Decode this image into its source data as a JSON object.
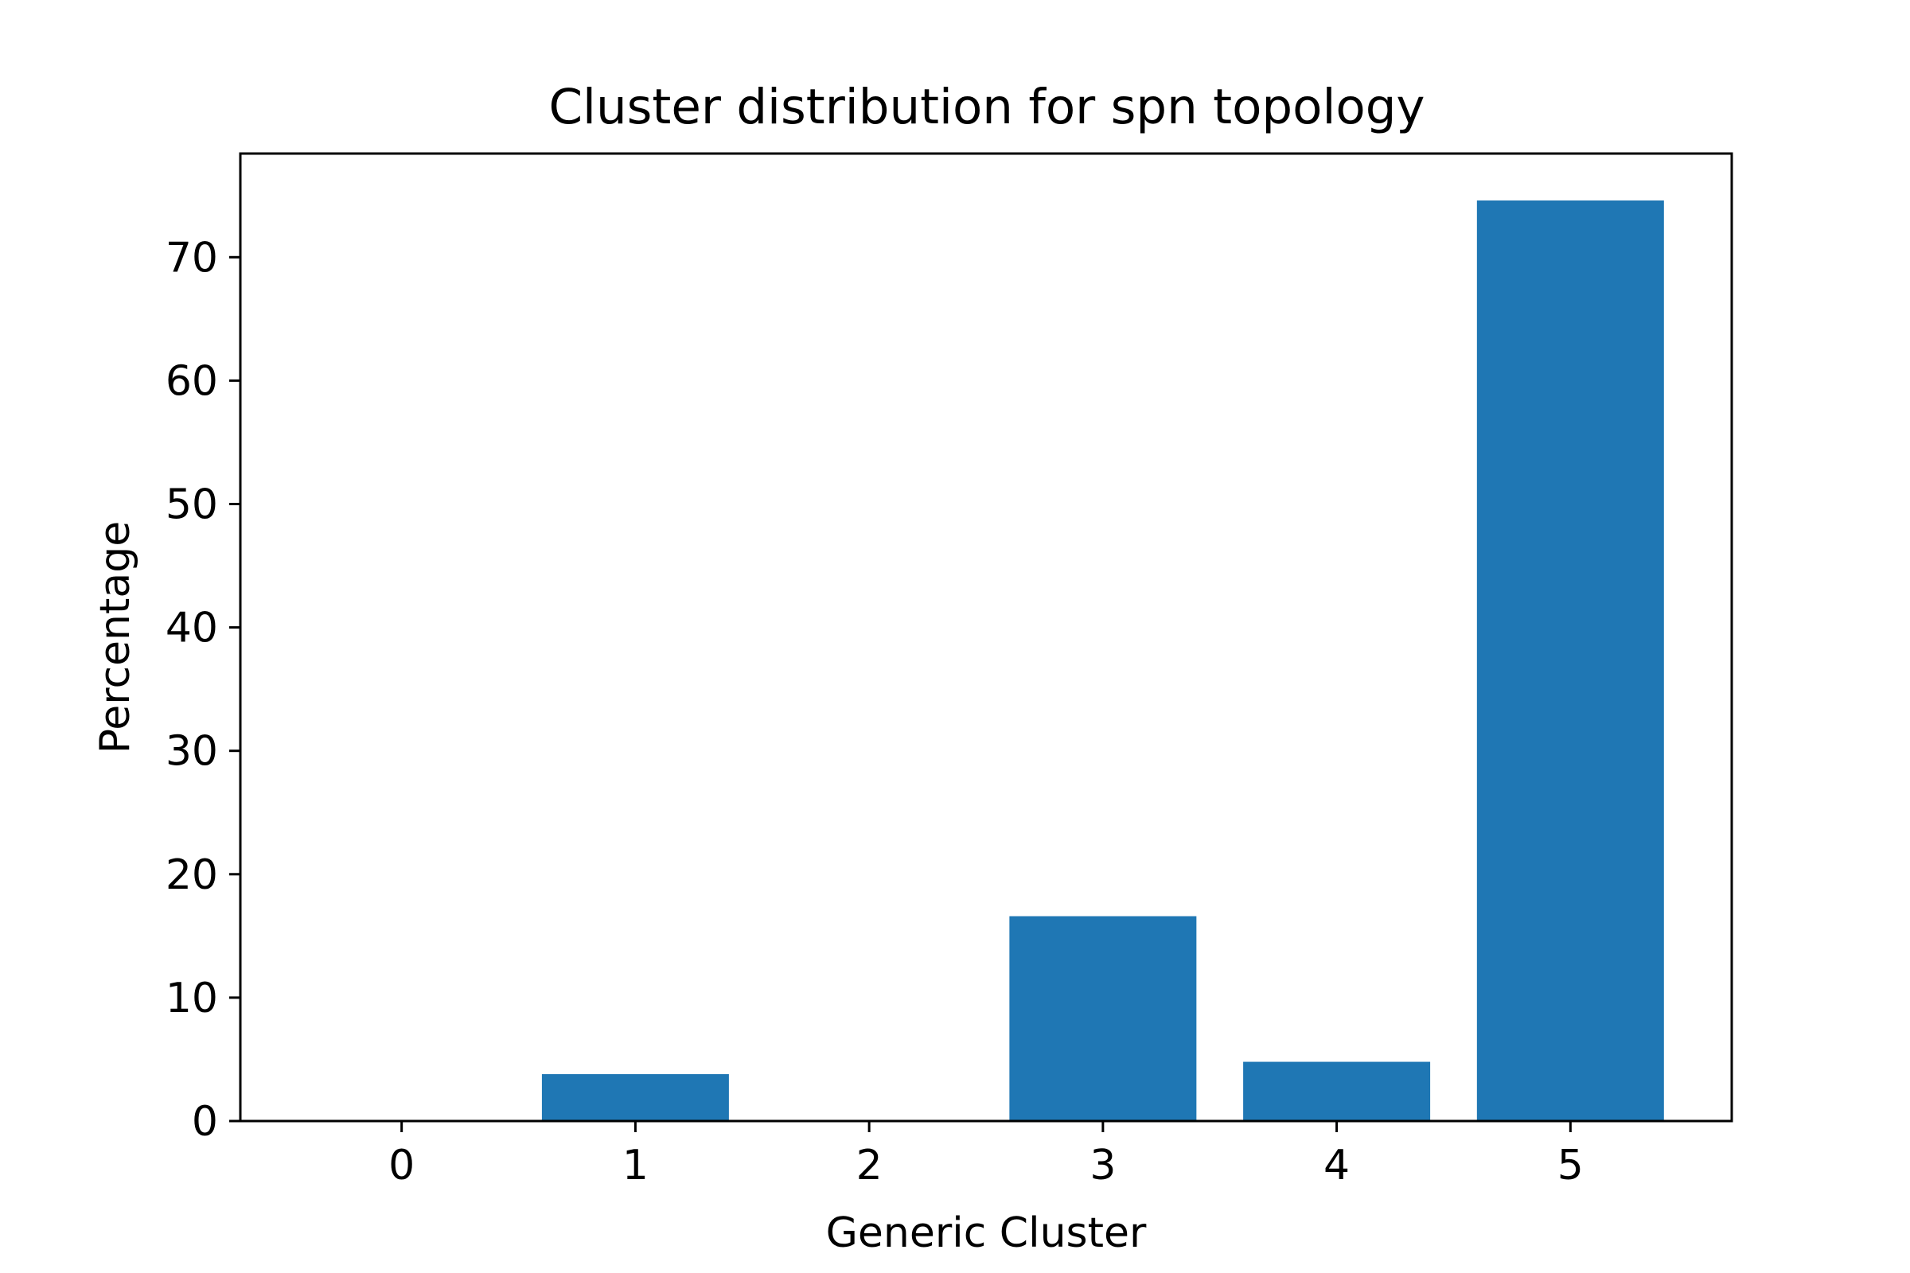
{
  "chart_data": {
    "type": "bar",
    "title": "Cluster distribution for spn topology",
    "xlabel": "Generic Cluster",
    "ylabel": "Percentage",
    "categories": [
      "0",
      "1",
      "2",
      "3",
      "4",
      "5"
    ],
    "values": [
      0,
      3.8,
      0,
      16.6,
      4.8,
      74.6
    ],
    "ylim": [
      0,
      78.4
    ],
    "yticks": [
      0,
      10,
      20,
      30,
      40,
      50,
      60,
      70
    ],
    "ytick_labels": [
      "0",
      "10",
      "20",
      "30",
      "40",
      "50",
      "60",
      "70"
    ],
    "grid": false,
    "legend": "none",
    "colors": {
      "bar": "#1f77b4",
      "axes": "#000000",
      "background": "#ffffff"
    }
  }
}
